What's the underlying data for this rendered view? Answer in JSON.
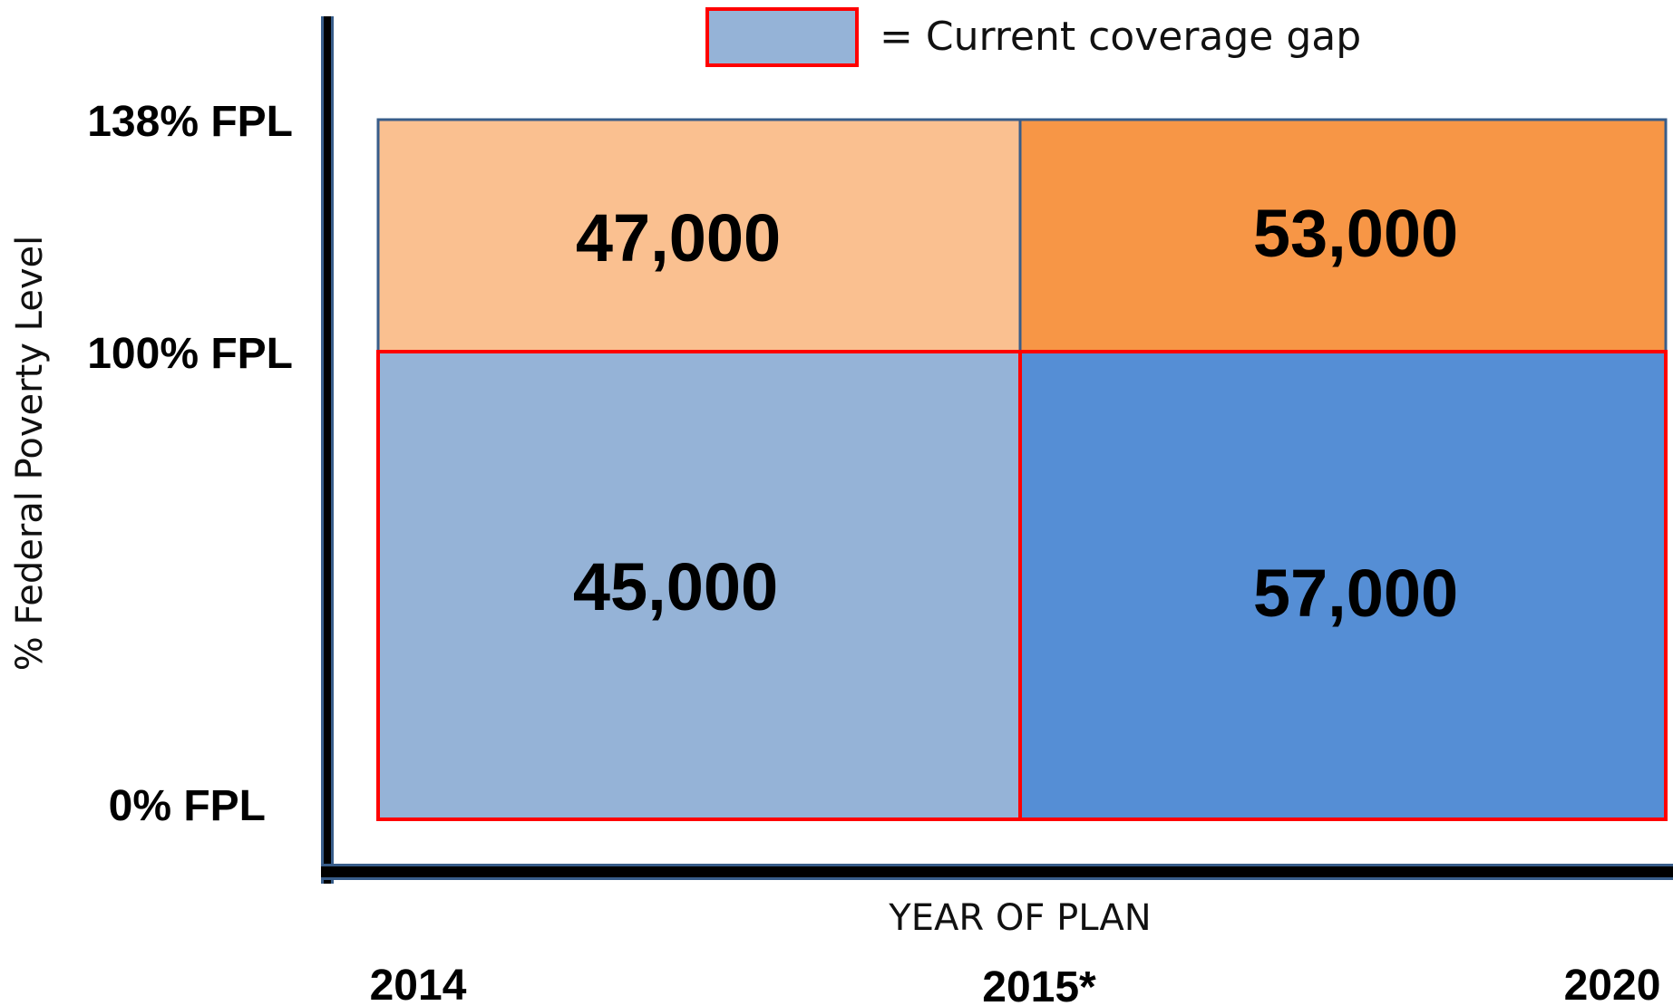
{
  "legend": {
    "label": "= Current coverage gap",
    "swatch_fill": "#95B3D7",
    "swatch_border": "#FF0000"
  },
  "chart_data": {
    "type": "table",
    "ylabel": "% Federal Poverty Level",
    "xlabel": "YEAR OF PLAN",
    "x_ticks": [
      "2014",
      "2015*",
      "2020"
    ],
    "y_ticks": [
      "0% FPL",
      "100% FPL",
      "138% FPL"
    ],
    "rows": [
      {
        "band": "100%–138% FPL",
        "cells": [
          {
            "period": "2014–2015*",
            "value": "47,000",
            "color": "#FAC090",
            "coverage_gap": false
          },
          {
            "period": "2015*–2020",
            "value": "53,000",
            "color": "#F79646",
            "coverage_gap": false
          }
        ]
      },
      {
        "band": "0%–100% FPL",
        "cells": [
          {
            "period": "2014–2015*",
            "value": "45,000",
            "color": "#95B3D7",
            "coverage_gap": true
          },
          {
            "period": "2015*–2020",
            "value": "57,000",
            "color": "#558ED5",
            "coverage_gap": true
          }
        ]
      }
    ],
    "colors": {
      "axis": "#000000",
      "cell_border": "#385D8A",
      "gap_border": "#FF0000"
    }
  }
}
